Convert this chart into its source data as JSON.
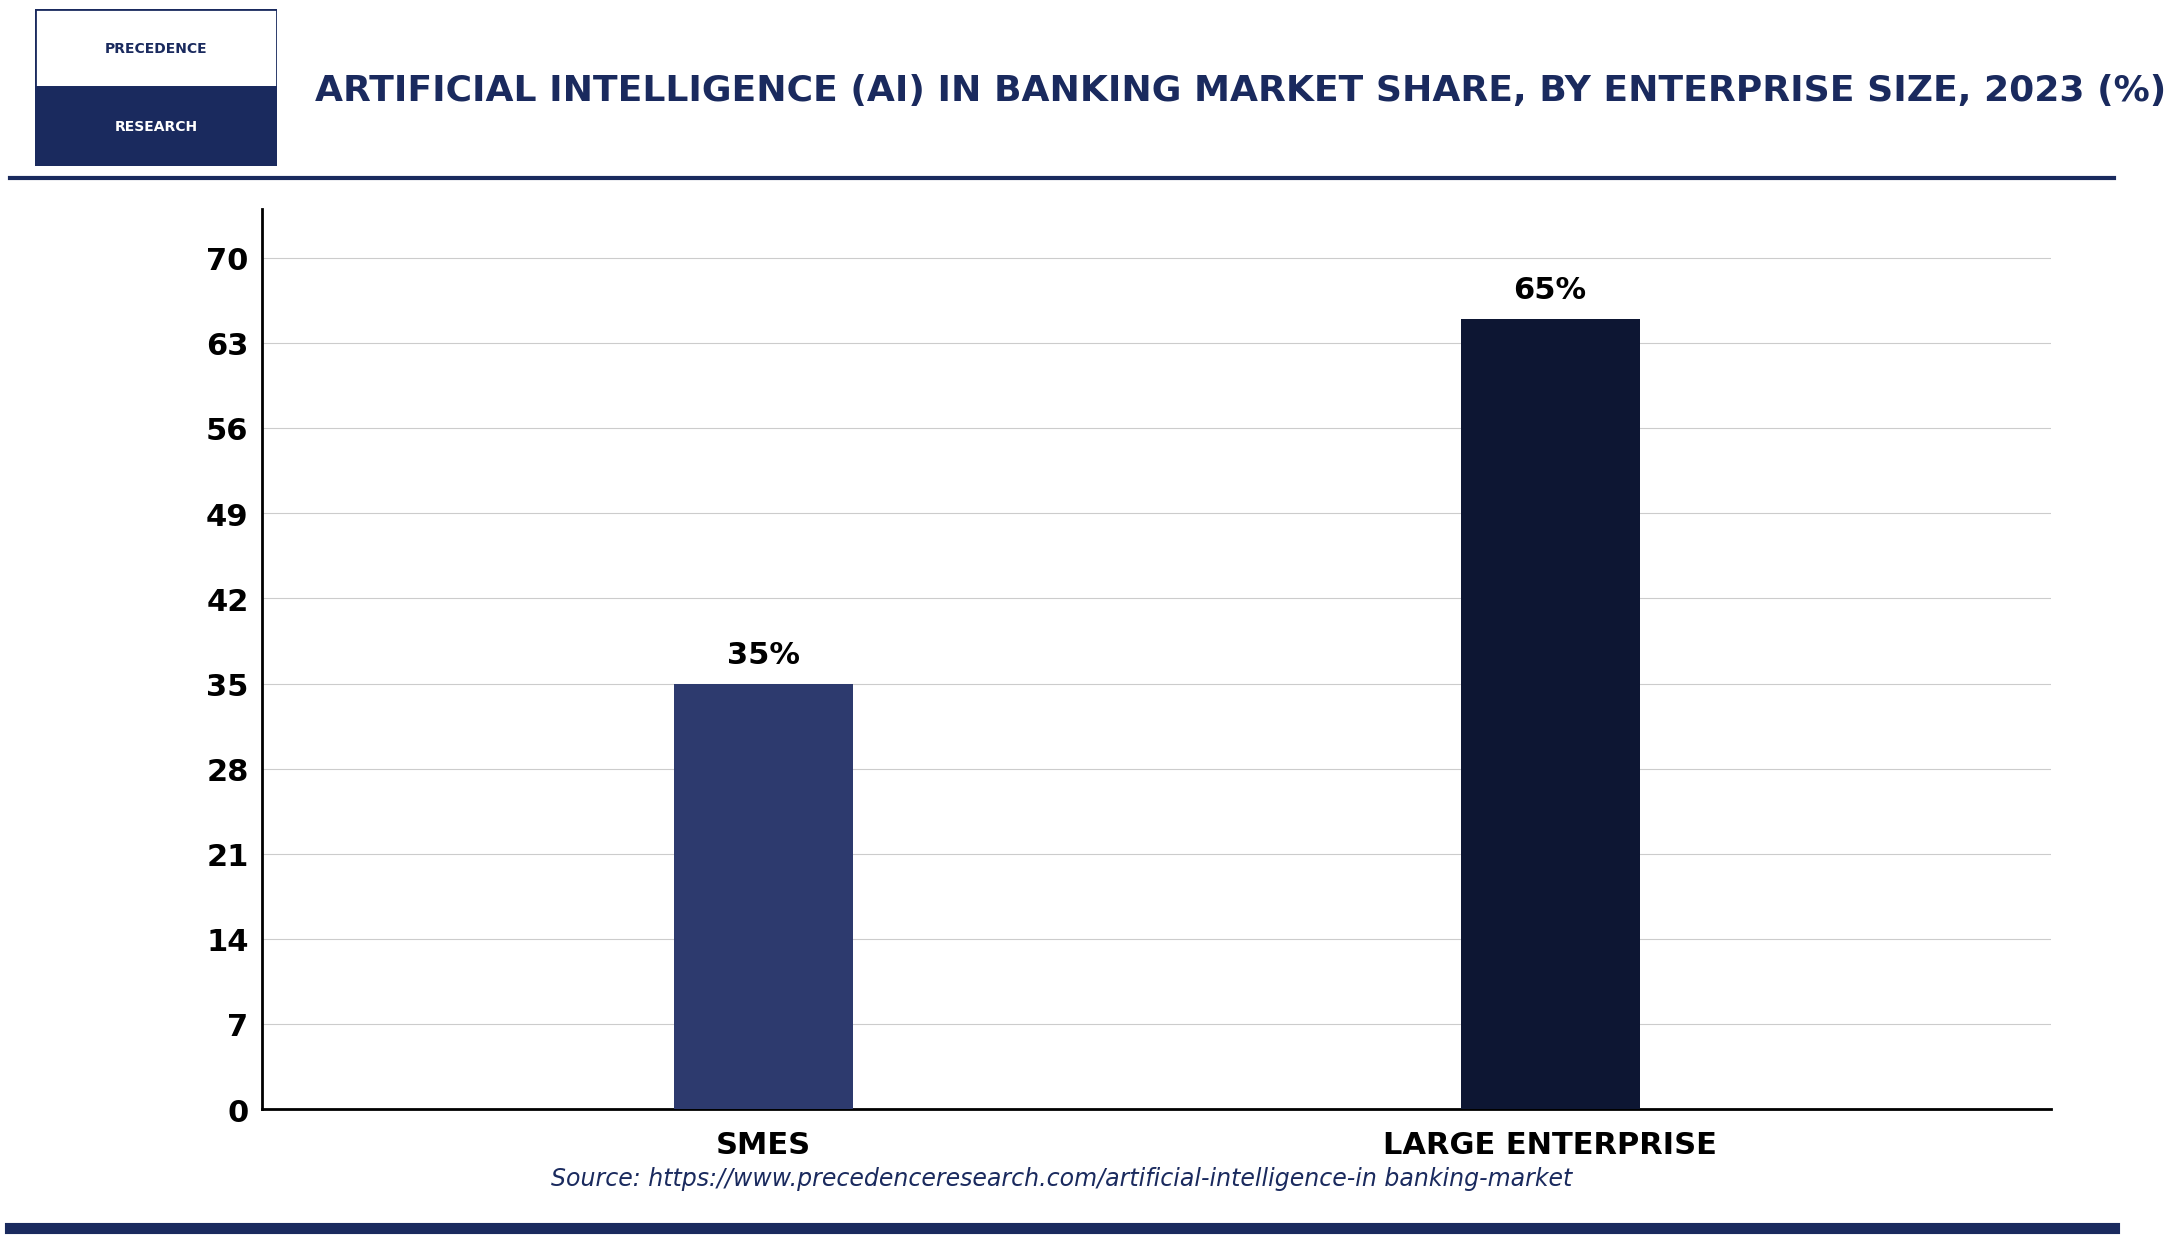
{
  "title": "ARTIFICIAL INTELLIGENCE (AI) IN BANKING MARKET SHARE, BY ENTERPRISE SIZE, 2023 (%)",
  "categories": [
    "SMES",
    "LARGE ENTERPRISE"
  ],
  "values": [
    35,
    65
  ],
  "bar_colors": [
    "#2d3a6e",
    "#0d1633"
  ],
  "yticks": [
    0,
    7,
    14,
    21,
    28,
    35,
    42,
    49,
    56,
    63,
    70
  ],
  "ylim": [
    0,
    74
  ],
  "bar_labels": [
    "35%",
    "65%"
  ],
  "source_text": "Source: https://www.precedenceresearch.com/artificial-intelligence-in banking-market",
  "background_color": "#ffffff",
  "grid_color": "#cccccc",
  "text_color": "#1a2a5e",
  "logo_text_top": "PRECEDENCE",
  "logo_text_bottom": "RESEARCH",
  "title_fontsize": 26,
  "tick_fontsize": 22,
  "label_fontsize": 22,
  "bar_label_fontsize": 22,
  "source_fontsize": 17,
  "bar_width": 0.1,
  "x_positions": [
    0.28,
    0.72
  ]
}
